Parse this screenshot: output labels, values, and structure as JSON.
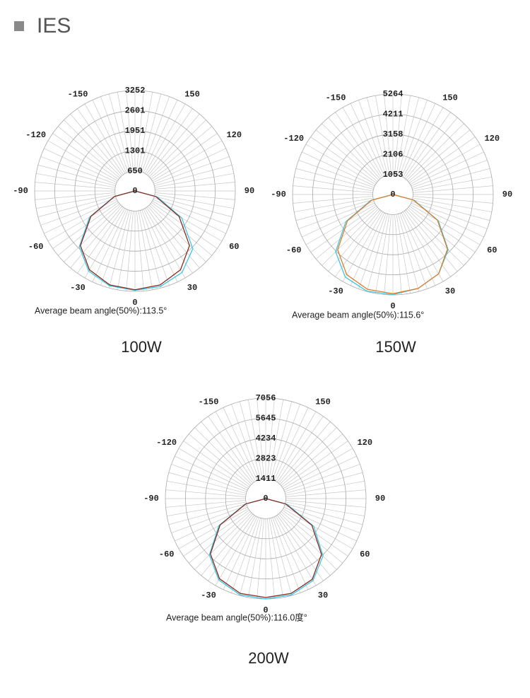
{
  "header": {
    "title": "IES"
  },
  "chart_data": [
    {
      "type": "polar",
      "title": "100W",
      "annotation": "Average beam angle(50%):113.5°",
      "rlim": [
        0,
        3252
      ],
      "rticks": [
        0,
        650,
        1301,
        1951,
        2601,
        3252
      ],
      "angle_ticks": [
        -150,
        -120,
        -90,
        -60,
        -30,
        0,
        30,
        60,
        90,
        120,
        150
      ],
      "angles": [
        -90,
        -75,
        -60,
        -45,
        -30,
        -15,
        0,
        15,
        30,
        45,
        60,
        75,
        90
      ],
      "series": [
        {
          "color": "#3cc7e6",
          "values": [
            0,
            700,
            1700,
            2550,
            3000,
            3180,
            3220,
            3200,
            3050,
            2650,
            1750,
            750,
            0
          ]
        },
        {
          "color": "#8b2b1f",
          "values": [
            0,
            680,
            1650,
            2500,
            2950,
            3150,
            3200,
            3150,
            2950,
            2500,
            1650,
            700,
            0
          ]
        }
      ]
    },
    {
      "type": "polar",
      "title": "150W",
      "annotation": "Average beam angle(50%):115.6°",
      "rlim": [
        0,
        5264
      ],
      "rticks": [
        0,
        1053,
        2106,
        3158,
        4211,
        5264
      ],
      "angle_ticks": [
        -150,
        -120,
        -90,
        -60,
        -30,
        0,
        30,
        60,
        90,
        120,
        150
      ],
      "angles": [
        -90,
        -75,
        -60,
        -45,
        -30,
        -15,
        0,
        15,
        30,
        45,
        60,
        75,
        90
      ],
      "series": [
        {
          "color": "#3cc7e6",
          "values": [
            0,
            1200,
            2850,
            4250,
            5000,
            5250,
            5250,
            5100,
            4800,
            4100,
            2750,
            1150,
            0
          ]
        },
        {
          "color": "#e07b2a",
          "values": [
            0,
            1150,
            2750,
            4100,
            4850,
            5150,
            5200,
            5100,
            4800,
            4050,
            2700,
            1100,
            0
          ]
        }
      ]
    },
    {
      "type": "polar",
      "title": "200W",
      "annotation": "Average beam angle(50%):116.0度°",
      "rlim": [
        0,
        7056
      ],
      "rticks": [
        0,
        1411,
        2823,
        4234,
        5645,
        7056
      ],
      "angle_ticks": [
        -150,
        -120,
        -90,
        -60,
        -30,
        0,
        30,
        60,
        90,
        120,
        150
      ],
      "angles": [
        -90,
        -75,
        -60,
        -45,
        -30,
        -15,
        0,
        15,
        30,
        45,
        60,
        75,
        90
      ],
      "series": [
        {
          "color": "#3cc7e6",
          "values": [
            0,
            1500,
            3800,
            5600,
            6600,
            7000,
            7050,
            7000,
            6650,
            5700,
            3900,
            1550,
            0
          ]
        },
        {
          "color": "#8b2b1f",
          "values": [
            0,
            1450,
            3700,
            5500,
            6500,
            6900,
            6950,
            6900,
            6550,
            5550,
            3750,
            1450,
            0
          ]
        }
      ]
    }
  ]
}
